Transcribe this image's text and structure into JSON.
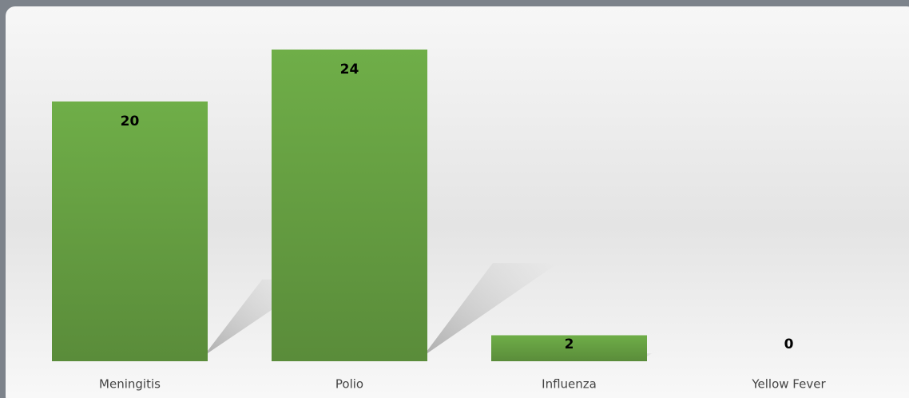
{
  "chart_data": {
    "type": "bar",
    "categories": [
      "Meningitis",
      "Polio",
      "Influenza",
      "Yellow Fever"
    ],
    "values": [
      20,
      24,
      2,
      0
    ],
    "color": "#6aa84f"
  }
}
